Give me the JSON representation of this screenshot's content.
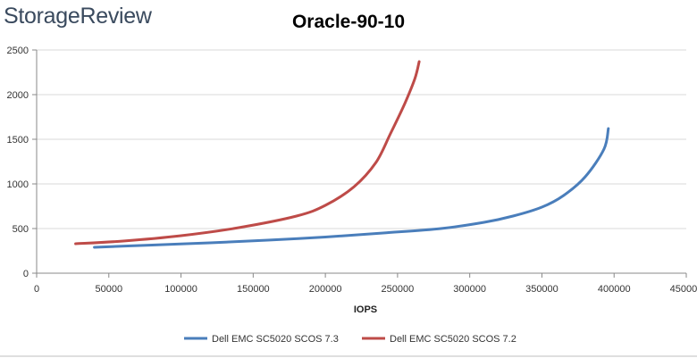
{
  "brand": "StorageReview",
  "chart_data": {
    "type": "line",
    "title": "Oracle-90-10",
    "xlabel": "IOPS",
    "ylabel": "",
    "xlim": [
      0,
      450000
    ],
    "ylim": [
      0,
      2500
    ],
    "xticks": [
      "0",
      "50000",
      "100000",
      "150000",
      "200000",
      "250000",
      "300000",
      "350000",
      "400000",
      "450000"
    ],
    "yticks": [
      "0",
      "500",
      "1000",
      "1500",
      "2000",
      "2500"
    ],
    "grid": {
      "horizontal": true,
      "vertical": false
    },
    "legend_position": "bottom",
    "series": [
      {
        "name": "Dell EMC SC5020 SCOS 7.3",
        "color": "#4a7ebb",
        "x": [
          40000,
          80000,
          120000,
          160000,
          200000,
          240000,
          280000,
          310000,
          330000,
          350000,
          365000,
          380000,
          393000,
          396000
        ],
        "y": [
          290,
          315,
          340,
          370,
          405,
          450,
          500,
          570,
          640,
          740,
          870,
          1080,
          1390,
          1620
        ]
      },
      {
        "name": "Dell EMC SC5020 SCOS 7.2",
        "color": "#be4b48",
        "x": [
          27000,
          60000,
          100000,
          140000,
          180000,
          200000,
          220000,
          235000,
          245000,
          255000,
          262000,
          265000
        ],
        "y": [
          330,
          360,
          420,
          510,
          640,
          760,
          970,
          1240,
          1560,
          1900,
          2180,
          2370
        ]
      }
    ]
  }
}
